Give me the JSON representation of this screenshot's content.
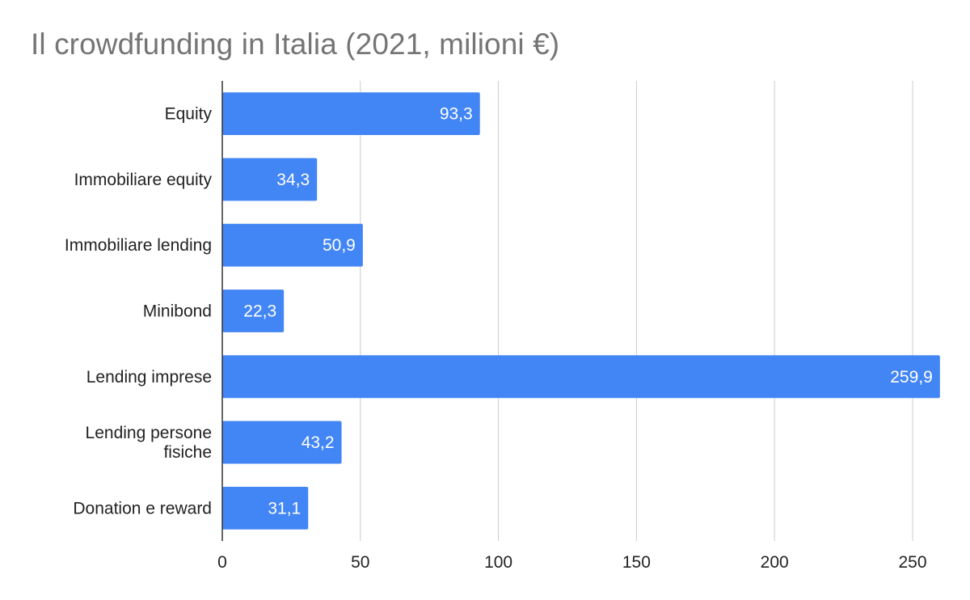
{
  "chart_data": {
    "type": "bar",
    "orientation": "horizontal",
    "title": "Il crowdfunding in Italia (2021, milioni €)",
    "categories": [
      [
        "Equity"
      ],
      [
        "Immobiliare equity"
      ],
      [
        "Immobiliare lending"
      ],
      [
        "Minibond"
      ],
      [
        "Lending imprese"
      ],
      [
        "Lending persone",
        "fisiche"
      ],
      [
        "Donation e reward"
      ]
    ],
    "values": [
      93.3,
      34.3,
      50.9,
      22.3,
      259.9,
      43.2,
      31.1
    ],
    "data_labels": [
      "93,3",
      "34,3",
      "50,9",
      "22,3",
      "259,9",
      "43,2",
      "31,1"
    ],
    "x_ticks": [
      0,
      50,
      100,
      150,
      200,
      250
    ],
    "xlim": [
      0,
      260
    ],
    "xlabel": "",
    "ylabel": "",
    "grid": "vertical",
    "legend": "none",
    "colors": {
      "bar": "#4285f4",
      "grid": "#cccccc",
      "axis": "#333333",
      "title": "#757575",
      "text": "#222222",
      "data_label": "#ffffff"
    }
  }
}
